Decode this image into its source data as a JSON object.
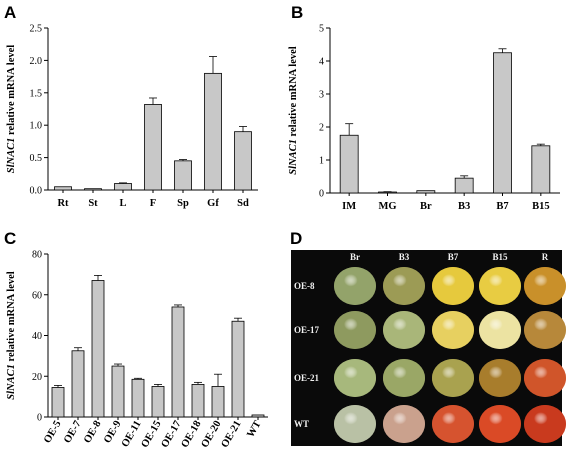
{
  "chart_data": [
    {
      "panel": "A",
      "type": "bar",
      "ylabel_italic": "SlNAC1",
      "ylabel_rest": " relative mRNA level",
      "categories": [
        "Rt",
        "St",
        "L",
        "F",
        "Sp",
        "Gf",
        "Sd"
      ],
      "values": [
        0.05,
        0.02,
        0.1,
        1.32,
        0.45,
        1.8,
        0.9
      ],
      "errors": [
        0.0,
        0.0,
        0.01,
        0.1,
        0.02,
        0.26,
        0.08
      ],
      "ylim": [
        0,
        2.5
      ],
      "yticks": [
        "0.0",
        "0.5",
        "1.0",
        "1.5",
        "2.0",
        "2.5"
      ]
    },
    {
      "panel": "B",
      "type": "bar",
      "ylabel_italic": "SlNAC1",
      "ylabel_rest": " relative mRNA level",
      "categories": [
        "IM",
        "MG",
        "Br",
        "B3",
        "B7",
        "B15"
      ],
      "values": [
        1.75,
        0.03,
        0.07,
        0.45,
        4.25,
        1.43
      ],
      "errors": [
        0.35,
        0.01,
        0.0,
        0.07,
        0.12,
        0.05
      ],
      "ylim": [
        0,
        5
      ],
      "yticks": [
        "0",
        "1",
        "2",
        "3",
        "4",
        "5"
      ]
    },
    {
      "panel": "C",
      "type": "bar",
      "ylabel_italic": "SlNAC1",
      "ylabel_rest": " relative mRNA level",
      "categories": [
        "OE-5",
        "OE-7",
        "OE-8",
        "OE-9",
        "OE-11",
        "OE-15",
        "OE-17",
        "OE-18",
        "OE-20",
        "OE-21",
        "WT"
      ],
      "values": [
        14.5,
        32.5,
        67,
        25,
        18.5,
        15,
        54,
        16,
        15,
        47,
        1
      ],
      "errors": [
        1.0,
        1.5,
        2.5,
        1.0,
        0.5,
        1.0,
        1.0,
        1.0,
        6.0,
        1.5,
        0.0
      ],
      "ylim": [
        0,
        80
      ],
      "yticks": [
        "0",
        "20",
        "40",
        "60",
        "80"
      ]
    }
  ],
  "photo_panel": {
    "panel": "D",
    "columns": [
      "Br",
      "B3",
      "B7",
      "B15",
      "R"
    ],
    "rows": [
      {
        "label": "OE-8",
        "colors": [
          "#93a36a",
          "#9c9b55",
          "#e6c93d",
          "#e8cc42",
          "#c9902a"
        ]
      },
      {
        "label": "OE-17",
        "colors": [
          "#8e9a5f",
          "#a9b679",
          "#e7d060",
          "#ece3a2",
          "#b7883a"
        ]
      },
      {
        "label": "OE-21",
        "colors": [
          "#a7b87c",
          "#9aa766",
          "#a9a24f",
          "#a87d2c",
          "#d0552a"
        ]
      },
      {
        "label": "WT",
        "colors": [
          "#b9c1a5",
          "#caa18d",
          "#d6532f",
          "#da4a26",
          "#c93a1e"
        ]
      }
    ]
  }
}
